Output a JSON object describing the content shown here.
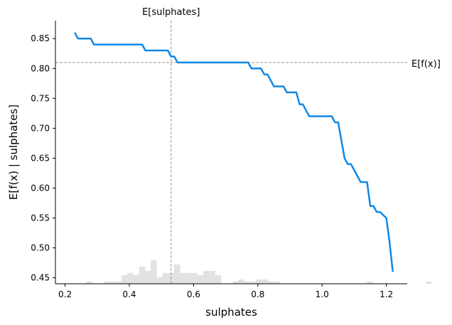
{
  "chart_data": {
    "type": "line",
    "title": "",
    "xlabel": "sulphates",
    "ylabel": "E[f(x) | sulphates]",
    "xlim": [
      0.17,
      1.265
    ],
    "ylim": [
      0.44,
      0.88
    ],
    "x_ticks": [
      0.2,
      0.4,
      0.6,
      0.8,
      1.0,
      1.2
    ],
    "x_tick_labels": [
      "0.2",
      "0.4",
      "0.6",
      "0.8",
      "1.0",
      "1.2"
    ],
    "y_ticks": [
      0.45,
      0.5,
      0.55,
      0.6,
      0.65,
      0.7,
      0.75,
      0.8,
      0.85
    ],
    "y_tick_labels": [
      "0.45",
      "0.50",
      "0.55",
      "0.60",
      "0.65",
      "0.70",
      "0.75",
      "0.80",
      "0.85"
    ],
    "grid": false,
    "legend": "none",
    "colors": {
      "line": "#1188e6",
      "hist": "#e2e2e2",
      "reference": "#999999"
    },
    "series": [
      {
        "x": [
          0.23,
          0.24,
          0.28,
          0.29,
          0.44,
          0.45,
          0.52,
          0.53,
          0.54,
          0.55,
          0.56,
          0.77,
          0.78,
          0.81,
          0.82,
          0.83,
          0.85,
          0.86,
          0.88,
          0.89,
          0.92,
          0.93,
          0.94,
          0.96,
          1.03,
          1.04,
          1.05,
          1.07,
          1.08,
          1.09,
          1.11,
          1.12,
          1.14,
          1.15,
          1.16,
          1.17,
          1.18,
          1.2,
          1.21,
          1.22
        ],
        "y": [
          0.86,
          0.85,
          0.85,
          0.84,
          0.84,
          0.83,
          0.83,
          0.82,
          0.82,
          0.81,
          0.81,
          0.81,
          0.8,
          0.8,
          0.79,
          0.79,
          0.77,
          0.77,
          0.77,
          0.76,
          0.76,
          0.74,
          0.74,
          0.72,
          0.72,
          0.71,
          0.71,
          0.65,
          0.64,
          0.64,
          0.62,
          0.61,
          0.61,
          0.57,
          0.57,
          0.56,
          0.56,
          0.55,
          0.51,
          0.46
        ]
      }
    ],
    "histogram": {
      "bin_start": 0.23,
      "bin_width": 0.0182,
      "counts": [
        0,
        0,
        1,
        0,
        0,
        1,
        1,
        1,
        4,
        5,
        4,
        8,
        6,
        11,
        3,
        5,
        5,
        9,
        5,
        5,
        5,
        4,
        6,
        6,
        4,
        0,
        0,
        1,
        2,
        1,
        1,
        2,
        2,
        1,
        1,
        0,
        0,
        0,
        0,
        0,
        0,
        0,
        0,
        0,
        0,
        0,
        0,
        0,
        0,
        0,
        1,
        0,
        0,
        0,
        0,
        0,
        0,
        0,
        0,
        0,
        1,
        0
      ],
      "max_height_fraction": 0.09
    },
    "reference_lines": {
      "vertical": {
        "x": 0.53,
        "label": "E[sulphates]"
      },
      "horizontal": {
        "y": 0.81,
        "label": "E[f(x)]"
      }
    }
  }
}
